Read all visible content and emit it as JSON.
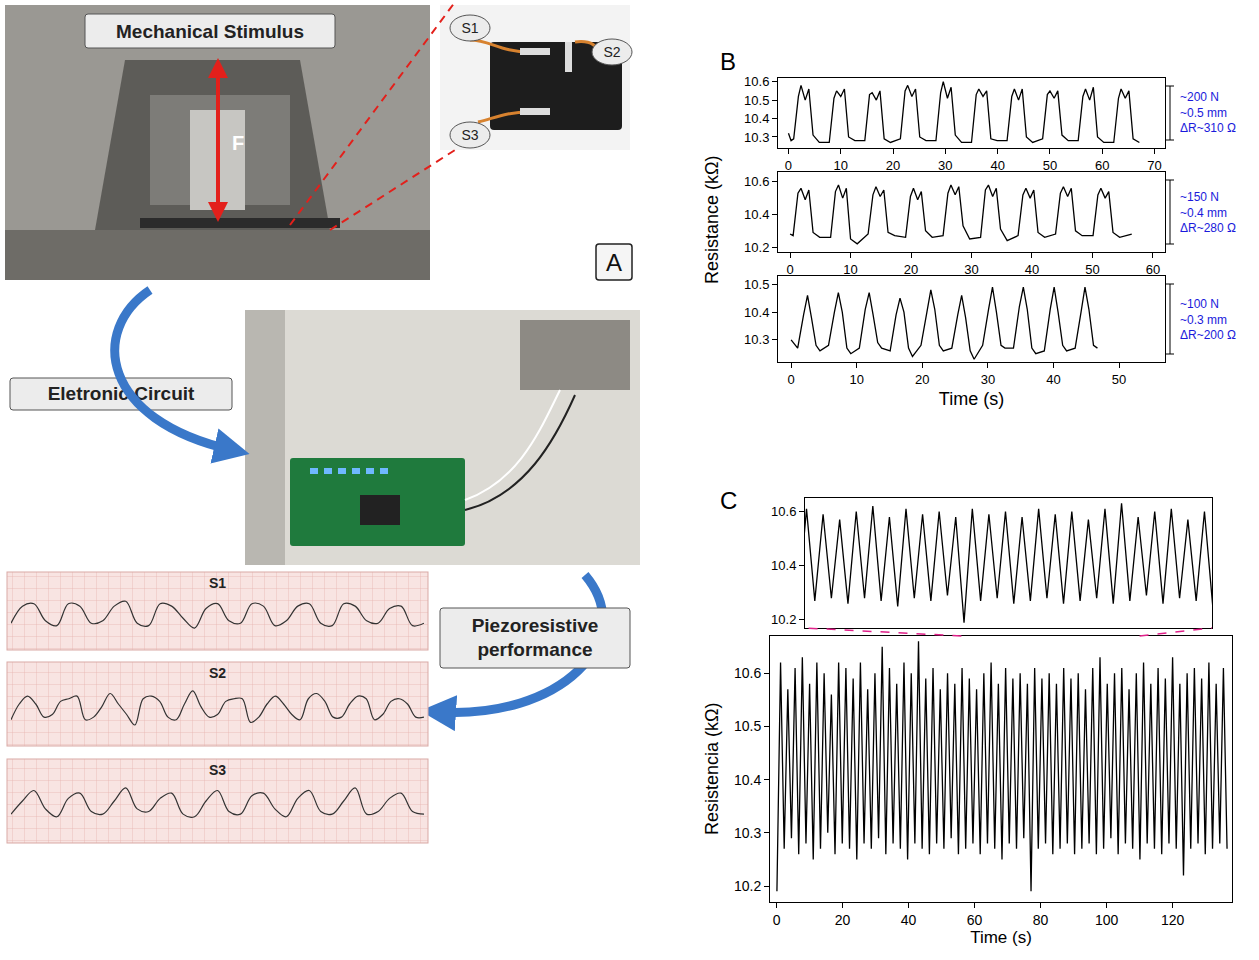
{
  "panel_a": {
    "letter": "A",
    "mechanical_stimulus": "Mechanical Stimulus",
    "force": "F",
    "sensors": [
      "S1",
      "S2",
      "S3"
    ],
    "electronic_circuit": "Eletronic Circuit",
    "piezoresistive_performance": "Piezoresistive performance",
    "strips": [
      {
        "name": "S1",
        "type": "line",
        "color": "#333333",
        "ylim": [
          -1,
          2.2
        ],
        "tick_labels": false,
        "values": [
          0.1,
          0.8,
          0.9,
          0.2,
          0.0,
          0.9,
          0.8,
          0.1,
          0.2,
          0.8,
          1.0,
          0.1,
          0.0,
          0.9,
          0.8,
          0.3,
          -0.1,
          0.7,
          0.9,
          0.2,
          0.1,
          0.9,
          0.8,
          0.0,
          0.2,
          0.8,
          0.9,
          0.1,
          0.0,
          0.9,
          0.8,
          0.2,
          0.1,
          0.7,
          0.8,
          0.0,
          0.1
        ]
      },
      {
        "name": "S2",
        "type": "line",
        "color": "#333333",
        "ylim": [
          -1,
          2.2
        ],
        "tick_labels": false,
        "values": [
          0.0,
          0.6,
          0.9,
          0.6,
          0.1,
          0.2,
          0.7,
          0.8,
          0.9,
          0.0,
          0.1,
          0.5,
          1.0,
          0.6,
          0.2,
          -0.2,
          0.8,
          0.9,
          0.7,
          0.1,
          0.0,
          0.6,
          1.1,
          0.5,
          0.1,
          0.2,
          0.7,
          0.8,
          0.8,
          -0.1,
          0.1,
          0.6,
          0.9,
          0.6,
          0.2,
          0.0,
          0.8,
          1.0,
          0.7,
          0.1,
          0.1,
          0.6,
          0.9,
          0.8,
          0.0,
          0.2,
          0.7,
          0.8,
          0.6,
          0.1,
          0.1
        ]
      },
      {
        "name": "S3",
        "type": "line",
        "color": "#333333",
        "ylim": [
          -1,
          2.2
        ],
        "tick_labels": false,
        "values": [
          0.1,
          0.6,
          1.0,
          0.3,
          0.0,
          0.7,
          0.9,
          0.2,
          0.1,
          0.6,
          1.1,
          0.3,
          0.2,
          0.7,
          0.9,
          0.1,
          0.0,
          0.6,
          1.0,
          0.2,
          0.1,
          0.8,
          0.9,
          0.3,
          0.0,
          0.7,
          1.0,
          0.2,
          0.1,
          0.6,
          1.1,
          0.1,
          0.2,
          0.7,
          0.9,
          0.2,
          0.1
        ]
      }
    ]
  },
  "chart_data": [
    {
      "type": "line",
      "panel": "B",
      "color": "#000000",
      "x": [
        0,
        0.5,
        1.0,
        1.9,
        2.4,
        3.2,
        3.9,
        4.7,
        5.9,
        7.8,
        8.7,
        9.2,
        10,
        10.7,
        11.5,
        12.7,
        14.6,
        15.5,
        16.0,
        16.8,
        17.5,
        18.3,
        19.5,
        21.4,
        22.3,
        22.8,
        23.6,
        24.3,
        25.1,
        26.3,
        28.2,
        29.1,
        29.6,
        30.4,
        31.1,
        31.9,
        33.1,
        35.0,
        35.9,
        36.4,
        37.2,
        37.9,
        38.7,
        39.9,
        41.8,
        42.7,
        43.2,
        44,
        44.7,
        45.5,
        46.7,
        48.6,
        49.5,
        50.0,
        50.8,
        51.5,
        52.3,
        53.5,
        55.4,
        56.3,
        56.8,
        57.6,
        58.3,
        59.1,
        60.3,
        62.2,
        63.1,
        63.6,
        64.4,
        65.1,
        65.9,
        67.1
      ],
      "values": [
        10.32,
        10.28,
        10.29,
        10.52,
        10.58,
        10.5,
        10.56,
        10.31,
        10.27,
        10.27,
        10.51,
        10.55,
        10.52,
        10.56,
        10.3,
        10.28,
        10.28,
        10.53,
        10.54,
        10.5,
        10.55,
        10.29,
        10.27,
        10.29,
        10.55,
        10.58,
        10.52,
        10.56,
        10.3,
        10.28,
        10.28,
        10.54,
        10.6,
        10.51,
        10.57,
        10.31,
        10.27,
        10.27,
        10.53,
        10.56,
        10.52,
        10.55,
        10.29,
        10.28,
        10.28,
        10.52,
        10.56,
        10.5,
        10.56,
        10.3,
        10.27,
        10.29,
        10.53,
        10.55,
        10.51,
        10.55,
        10.31,
        10.28,
        10.28,
        10.52,
        10.56,
        10.5,
        10.57,
        10.3,
        10.27,
        10.27,
        10.51,
        10.56,
        10.51,
        10.55,
        10.29,
        10.27
      ],
      "xlim": [
        -2,
        72
      ],
      "xticks": [
        0,
        10,
        20,
        30,
        40,
        50,
        60,
        70
      ],
      "ylim": [
        10.24,
        10.62
      ],
      "yticks": [
        10.3,
        10.4,
        10.5,
        10.6
      ],
      "annotations": [
        "~200 N",
        "~0.5 mm",
        "ΔR~310 Ω"
      ]
    },
    {
      "type": "line",
      "color": "#000000",
      "y_label": "Resistance (kΩ)",
      "x": [
        0,
        0.5,
        1.3,
        1.8,
        2.5,
        3.1,
        3.8,
        4.9,
        6.7,
        7.5,
        8.0,
        8.7,
        9.3,
        10.0,
        11.1,
        12.9,
        13.7,
        14.2,
        14.9,
        15.5,
        16.2,
        17.3,
        19.1,
        19.9,
        20.4,
        21.1,
        21.7,
        22.4,
        23.5,
        25.3,
        26.1,
        26.6,
        27.3,
        27.9,
        28.6,
        29.7,
        31.5,
        32.3,
        32.8,
        33.5,
        34.1,
        34.8,
        35.9,
        37.7,
        38.5,
        39.0,
        39.7,
        40.3,
        41.0,
        42.1,
        43.9,
        44.7,
        45.2,
        45.9,
        46.5,
        47.2,
        48.3,
        50.1,
        50.9,
        51.4,
        52.1,
        52.7,
        53.4,
        54.5,
        56.5
      ],
      "values": [
        10.28,
        10.27,
        10.53,
        10.56,
        10.49,
        10.55,
        10.29,
        10.26,
        10.26,
        10.54,
        10.58,
        10.5,
        10.56,
        10.25,
        10.22,
        10.28,
        10.52,
        10.57,
        10.51,
        10.55,
        10.29,
        10.27,
        10.26,
        10.51,
        10.56,
        10.49,
        10.54,
        10.3,
        10.26,
        10.27,
        10.53,
        10.58,
        10.52,
        10.57,
        10.33,
        10.25,
        10.26,
        10.55,
        10.58,
        10.51,
        10.56,
        10.31,
        10.24,
        10.27,
        10.52,
        10.56,
        10.5,
        10.55,
        10.29,
        10.26,
        10.28,
        10.53,
        10.57,
        10.51,
        10.56,
        10.3,
        10.27,
        10.27,
        10.52,
        10.56,
        10.5,
        10.54,
        10.29,
        10.26,
        10.28
      ],
      "xlim": [
        -2,
        62
      ],
      "xticks": [
        0,
        10,
        20,
        30,
        40,
        50,
        60
      ],
      "ylim": [
        10.17,
        10.66
      ],
      "yticks": [
        10.2,
        10.4,
        10.6
      ],
      "annotations": [
        "~150 N",
        "~0.4 mm",
        "ΔR~280 Ω"
      ]
    },
    {
      "type": "line",
      "color": "#000000",
      "x_label": "Time (s)",
      "x": [
        0,
        1.0,
        1.9,
        2.5,
        3.1,
        3.8,
        4.4,
        5.7,
        6.6,
        7.2,
        7.8,
        8.5,
        9.1,
        10.4,
        11.3,
        11.9,
        12.5,
        13.2,
        13.8,
        15.1,
        16.0,
        16.6,
        17.2,
        17.9,
        18.5,
        19.8,
        20.7,
        21.3,
        21.9,
        22.6,
        23.2,
        24.5,
        25.4,
        26.0,
        26.6,
        27.3,
        27.9,
        29.2,
        30.1,
        30.7,
        31.3,
        32.0,
        32.6,
        33.9,
        34.8,
        35.4,
        36.0,
        36.7,
        37.3,
        38.6,
        39.5,
        40.1,
        40.7,
        41.4,
        42.0,
        43.3,
        44.2,
        44.8,
        45.4,
        46.1,
        46.7
      ],
      "values": [
        10.3,
        10.27,
        10.39,
        10.46,
        10.38,
        10.28,
        10.26,
        10.28,
        10.4,
        10.47,
        10.4,
        10.27,
        10.25,
        10.27,
        10.41,
        10.47,
        10.39,
        10.29,
        10.27,
        10.26,
        10.39,
        10.45,
        10.4,
        10.27,
        10.24,
        10.28,
        10.4,
        10.48,
        10.41,
        10.28,
        10.26,
        10.27,
        10.39,
        10.46,
        10.38,
        10.26,
        10.23,
        10.28,
        10.41,
        10.49,
        10.4,
        10.28,
        10.27,
        10.27,
        10.42,
        10.49,
        10.41,
        10.27,
        10.25,
        10.26,
        10.41,
        10.49,
        10.4,
        10.28,
        10.26,
        10.27,
        10.4,
        10.49,
        10.41,
        10.28,
        10.27
      ],
      "xlim": [
        -2,
        57
      ],
      "xticks": [
        0,
        10,
        20,
        30,
        40,
        50
      ],
      "ylim": [
        10.22,
        10.53
      ],
      "yticks": [
        10.3,
        10.4,
        10.5
      ],
      "annotations": [
        "~100 N",
        "~0.3 mm",
        "ΔR~200 Ω"
      ]
    },
    {
      "type": "line",
      "panel": "C",
      "color": "#000000",
      "x_label": "Time (s)",
      "y_label": "Resistencia (kΩ)",
      "x": [
        0.1,
        1.2,
        2.3,
        3.4,
        4.5,
        5.6,
        6.7,
        7.8,
        8.9,
        10.0,
        11.1,
        12.2,
        13.3,
        14.4,
        15.5,
        16.6,
        17.7,
        18.8,
        19.9,
        21.0,
        22.1,
        23.2,
        24.3,
        25.4,
        26.5,
        27.6,
        28.7,
        29.8,
        30.9,
        32.0,
        33.1,
        34.2,
        35.3,
        36.4,
        37.5,
        38.6,
        39.7,
        40.8,
        41.9,
        43.0,
        44.1,
        45.2,
        46.3,
        47.4,
        48.5,
        49.6,
        50.7,
        51.8,
        52.9,
        54.0,
        55.1,
        56.2,
        57.3,
        58.4,
        59.5,
        60.6,
        61.7,
        62.8,
        63.9,
        65.0,
        66.1,
        67.2,
        68.3,
        69.4,
        70.5,
        71.6,
        72.7,
        73.8,
        74.9,
        76.0,
        77.1,
        78.2,
        79.3,
        80.4,
        81.5,
        82.6,
        83.7,
        84.8,
        85.9,
        87.0,
        88.1,
        89.2,
        90.3,
        91.4,
        92.5,
        93.6,
        94.7,
        95.8,
        96.9,
        98.0,
        99.1,
        100.2,
        101.3,
        102.4,
        103.5,
        104.6,
        105.7,
        106.8,
        107.9,
        109.0,
        110.1,
        111.2,
        112.3,
        113.4,
        114.5,
        115.6,
        116.7,
        117.8,
        118.9,
        120.0,
        121.1,
        122.2,
        123.3,
        124.4,
        125.5,
        126.6,
        127.7,
        128.8,
        129.9,
        131.0,
        132.1,
        133.2,
        134.3,
        135.4,
        136.5
      ],
      "values": [
        10.19,
        10.62,
        10.27,
        10.57,
        10.29,
        10.61,
        10.26,
        10.63,
        10.28,
        10.58,
        10.25,
        10.62,
        10.27,
        10.6,
        10.3,
        10.56,
        10.26,
        10.62,
        10.28,
        10.61,
        10.27,
        10.59,
        10.25,
        10.62,
        10.28,
        10.57,
        10.27,
        10.6,
        10.29,
        10.65,
        10.26,
        10.61,
        10.28,
        10.58,
        10.27,
        10.62,
        10.25,
        10.6,
        10.28,
        10.66,
        10.27,
        10.59,
        10.26,
        10.61,
        10.28,
        10.57,
        10.27,
        10.6,
        10.29,
        10.58,
        10.26,
        10.61,
        10.27,
        10.59,
        10.28,
        10.57,
        10.26,
        10.6,
        10.28,
        10.62,
        10.27,
        10.58,
        10.25,
        10.61,
        10.28,
        10.59,
        10.27,
        10.6,
        10.29,
        10.58,
        10.19,
        10.61,
        10.27,
        10.59,
        10.28,
        10.6,
        10.26,
        10.58,
        10.27,
        10.61,
        10.28,
        10.59,
        10.26,
        10.6,
        10.27,
        10.57,
        10.28,
        10.61,
        10.26,
        10.63,
        10.27,
        10.58,
        10.29,
        10.6,
        10.26,
        10.61,
        10.28,
        10.57,
        10.27,
        10.6,
        10.25,
        10.62,
        10.28,
        10.58,
        10.27,
        10.61,
        10.26,
        10.59,
        10.28,
        10.63,
        10.27,
        10.58,
        10.22,
        10.6,
        10.27,
        10.61,
        10.28,
        10.59,
        10.26,
        10.62,
        10.27,
        10.58,
        10.28,
        10.61,
        10.27
      ],
      "xlim": [
        -2,
        138
      ],
      "xticks": [
        0,
        20,
        40,
        60,
        80,
        100,
        120
      ],
      "ylim": [
        10.17,
        10.67
      ],
      "yticks": [
        10.2,
        10.3,
        10.4,
        10.5,
        10.6
      ],
      "inset": {
        "xlim": [
          56,
          110
        ],
        "ylim": [
          10.17,
          10.65
        ],
        "yticks": [
          10.2,
          10.4,
          10.6
        ],
        "tick_labels": "y"
      }
    }
  ]
}
